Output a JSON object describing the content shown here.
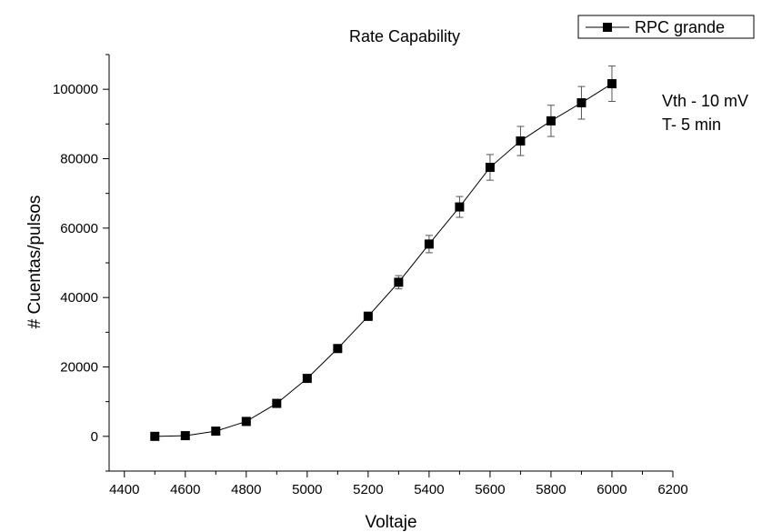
{
  "chart_data": {
    "type": "scatter",
    "title": "Rate Capability",
    "xlabel": "Voltaje",
    "ylabel": "# Cuentas/pulsos",
    "xlim": [
      4350,
      6200
    ],
    "ylim": [
      -10000,
      110000
    ],
    "x_ticks": [
      4400,
      4600,
      4800,
      5000,
      5200,
      5400,
      5600,
      5800,
      6000,
      6200
    ],
    "y_ticks": [
      0,
      20000,
      40000,
      60000,
      80000,
      100000
    ],
    "x_tick_labels": [
      "4400",
      "4600",
      "4800",
      "5000",
      "5200",
      "5400",
      "5600",
      "5800",
      "6000",
      "6200"
    ],
    "y_tick_labels": [
      "0",
      "20000",
      "40000",
      "60000",
      "80000",
      "100000"
    ],
    "grid": false,
    "legend": "top-right",
    "series": [
      {
        "name": "RPC grande",
        "x": [
          4500,
          4600,
          4700,
          4800,
          4900,
          5000,
          5100,
          5200,
          5300,
          5400,
          5500,
          5600,
          5700,
          5800,
          5900,
          6000
        ],
        "y": [
          0,
          200,
          1500,
          4300,
          9500,
          16700,
          25300,
          34600,
          44400,
          55400,
          66100,
          77500,
          85100,
          90900,
          96100,
          101600
        ],
        "yerr": [
          200,
          200,
          300,
          500,
          700,
          800,
          1000,
          1200,
          1900,
          2500,
          3000,
          3700,
          4200,
          4500,
          4700,
          5100
        ]
      }
    ],
    "annotations": [
      "Vth - 10 mV",
      "T- 5 min"
    ],
    "colors": {
      "line": "#000000",
      "marker": "#000000",
      "errorbar": "#555555"
    }
  }
}
